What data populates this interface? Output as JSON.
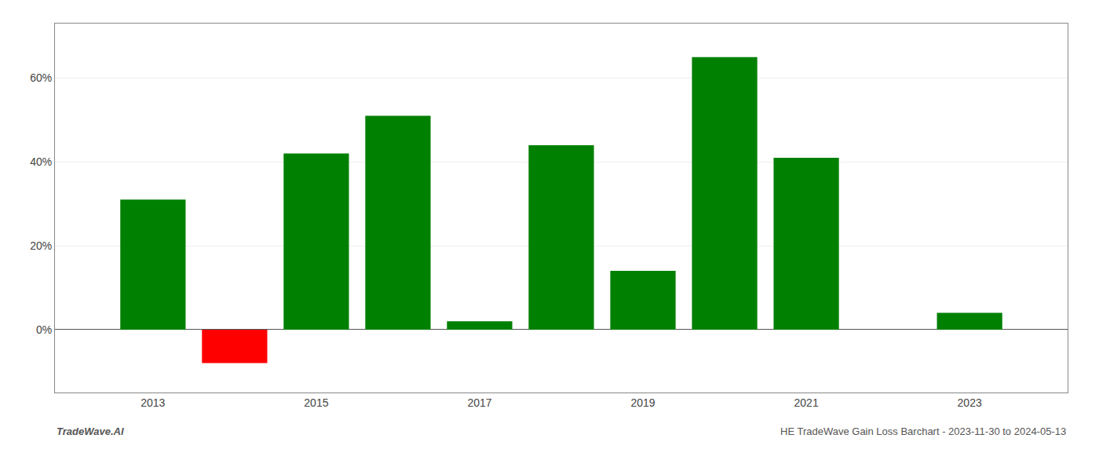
{
  "chart_data": {
    "type": "bar",
    "x": [
      2013,
      2014,
      2015,
      2016,
      2017,
      2018,
      2019,
      2020,
      2021,
      2022,
      2023
    ],
    "values": [
      31.0,
      -8.0,
      42.0,
      51.0,
      2.0,
      44.0,
      14.0,
      65.0,
      41.0,
      0.0,
      4.0
    ],
    "colors": [
      "#008000",
      "#ff0000",
      "#008000",
      "#008000",
      "#008000",
      "#008000",
      "#008000",
      "#008000",
      "#008000",
      "#008000",
      "#008000"
    ],
    "xlim": [
      2011.8,
      2024.2
    ],
    "xticks": [
      2013,
      2015,
      2017,
      2019,
      2021,
      2023
    ],
    "ylim": [
      -15,
      73
    ],
    "yticks": [
      {
        "value": 0,
        "label": "0%"
      },
      {
        "value": 20,
        "label": "20%"
      },
      {
        "value": 40,
        "label": "40%"
      },
      {
        "value": 60,
        "label": "60%"
      }
    ],
    "grid": "y",
    "annotations": [
      "TradeWave.AI",
      "HE TradeWave Gain Loss Barchart - 2023-11-30 to 2024-05-13"
    ]
  }
}
